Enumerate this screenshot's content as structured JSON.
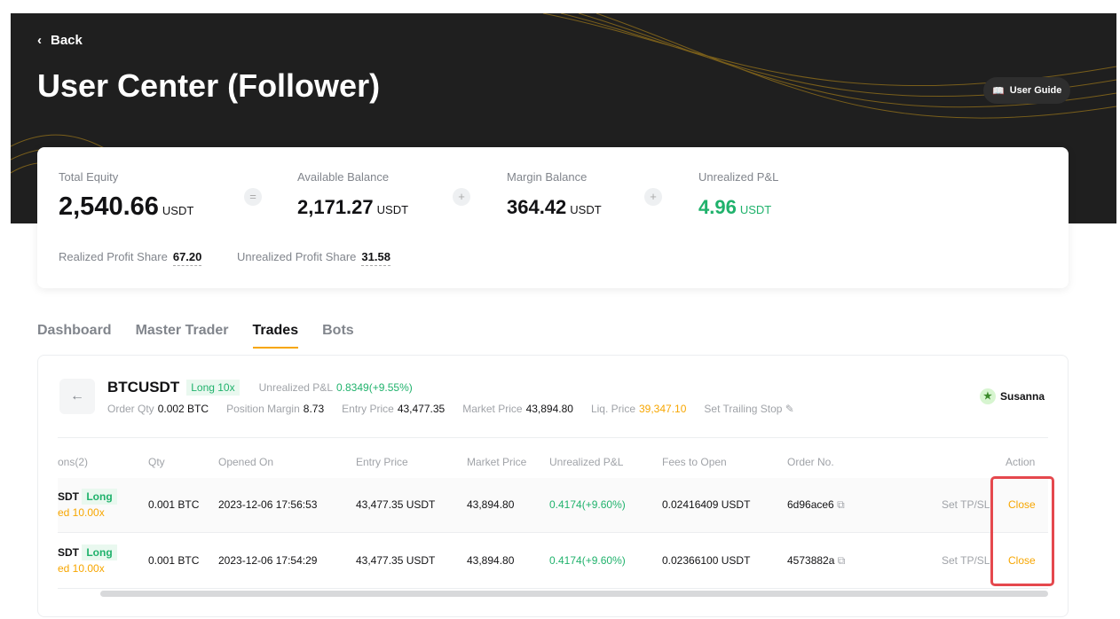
{
  "header": {
    "back": "Back",
    "title": "User Center (Follower)",
    "user_guide": "User Guide"
  },
  "summary": {
    "total_equity": {
      "label": "Total Equity",
      "value": "2,540.66",
      "unit": "USDT"
    },
    "available_balance": {
      "label": "Available Balance",
      "value": "2,171.27",
      "unit": "USDT"
    },
    "margin_balance": {
      "label": "Margin Balance",
      "value": "364.42",
      "unit": "USDT"
    },
    "unrealized_pnl": {
      "label": "Unrealized P&L",
      "value": "4.96",
      "unit": "USDT"
    },
    "ops": [
      "=",
      "+",
      "+"
    ],
    "realized_profit_share": {
      "label": "Realized Profit Share",
      "value": "67.20"
    },
    "unrealized_profit_share": {
      "label": "Unrealized Profit Share",
      "value": "31.58"
    }
  },
  "tabs": [
    {
      "label": "Dashboard"
    },
    {
      "label": "Master Trader"
    },
    {
      "label": "Trades",
      "active": true
    },
    {
      "label": "Bots"
    }
  ],
  "position": {
    "symbol": "BTCUSDT",
    "side": "Long 10x",
    "pnl_label": "Unrealized P&L",
    "pnl": "0.8349(+9.55%)",
    "order_qty_label": "Order Qty",
    "order_qty": "0.002 BTC",
    "margin_label": "Position Margin",
    "margin": "8.73",
    "entry_label": "Entry Price",
    "entry": "43,477.35",
    "market_label": "Market Price",
    "market": "43,894.80",
    "liq_label": "Liq. Price",
    "liq": "39,347.10",
    "trailing": "Set Trailing Stop",
    "trader": "Susanna"
  },
  "table": {
    "headers": [
      "ons(2)",
      "Qty",
      "Opened On",
      "Entry Price",
      "Market Price",
      "Unrealized P&L",
      "Fees to Open",
      "Order No.",
      "Action"
    ],
    "rows": [
      {
        "symbol": "SDT",
        "side": "Long",
        "lev": "ed 10.00x",
        "qty": "0.001 BTC",
        "opened": "2023-12-06 17:56:53",
        "entry": "43,477.35 USDT",
        "market": "43,894.80",
        "pnl": "0.4174(+9.60%)",
        "fees": "0.02416409 USDT",
        "order": "6d96ace6",
        "tpsl": "Set TP/SL",
        "close": "Close"
      },
      {
        "symbol": "SDT",
        "side": "Long",
        "lev": "ed 10.00x",
        "qty": "0.001 BTC",
        "opened": "2023-12-06 17:54:29",
        "entry": "43,477.35 USDT",
        "market": "43,894.80",
        "pnl": "0.4174(+9.60%)",
        "fees": "0.02366100 USDT",
        "order": "4573882a",
        "tpsl": "Set TP/SL",
        "close": "Close"
      }
    ]
  },
  "colors": {
    "accent": "#f7a600",
    "green": "#20b26c",
    "banner": "#1f1f1f",
    "highlight": "#e5484d"
  }
}
